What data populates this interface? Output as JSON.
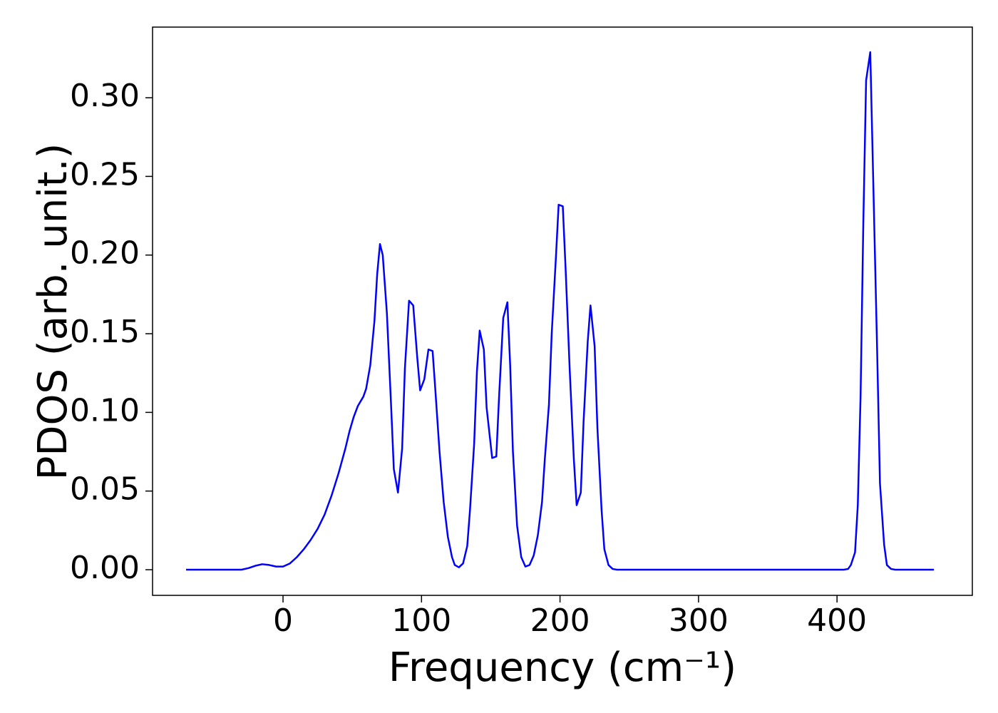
{
  "chart_data": {
    "type": "line",
    "xlabel": "Frequency (cm⁻¹)",
    "ylabel": "PDOS (arb. unit.)",
    "color": "#0000ff",
    "xlim": [
      -94.2,
      497.7
    ],
    "ylim": [
      -0.0163,
      0.3449
    ],
    "xticks": [
      0,
      100,
      200,
      300,
      400
    ],
    "yticks": [
      {
        "value": 0,
        "label": "0.00"
      },
      0.05,
      {
        "value": 0.1,
        "label": "0.10"
      },
      0.15,
      {
        "value": 0.2,
        "label": "0.20"
      },
      0.25,
      {
        "value": 0.3,
        "label": "0.30"
      }
    ],
    "x": [
      -70,
      -30,
      -25,
      -20,
      -15,
      -10,
      -5,
      0,
      5,
      10,
      15,
      20,
      25,
      30,
      35,
      40,
      45,
      48,
      51,
      54,
      58,
      60,
      63,
      66,
      68,
      70,
      72,
      75,
      78,
      80,
      83,
      86,
      88,
      91,
      94,
      97,
      99,
      102,
      105,
      108,
      110,
      113,
      116,
      119,
      122,
      124,
      127,
      130,
      133,
      135,
      138,
      140,
      142,
      145,
      147,
      151,
      154,
      156,
      159,
      162,
      164,
      166,
      169,
      172,
      175,
      178,
      181,
      184,
      187,
      189,
      192,
      194,
      197,
      199,
      202,
      204,
      207,
      210,
      212,
      215,
      217,
      220,
      222,
      225,
      227,
      230,
      232,
      235,
      238,
      241,
      405,
      408,
      410,
      413,
      415,
      417,
      419,
      421,
      424,
      426,
      429,
      431,
      434,
      436,
      439,
      442,
      470
    ],
    "values": [
      0,
      0,
      0.001,
      0.0025,
      0.0035,
      0.003,
      0.002,
      0.002,
      0.004,
      0.008,
      0.013,
      0.019,
      0.026,
      0.035,
      0.047,
      0.061,
      0.077,
      0.088,
      0.097,
      0.104,
      0.11,
      0.115,
      0.13,
      0.158,
      0.188,
      0.207,
      0.2,
      0.163,
      0.105,
      0.064,
      0.049,
      0.077,
      0.128,
      0.171,
      0.168,
      0.134,
      0.114,
      0.121,
      0.14,
      0.139,
      0.114,
      0.075,
      0.043,
      0.021,
      0.008,
      0.003,
      0.0015,
      0.004,
      0.015,
      0.038,
      0.08,
      0.126,
      0.152,
      0.14,
      0.103,
      0.071,
      0.072,
      0.11,
      0.16,
      0.17,
      0.13,
      0.075,
      0.028,
      0.008,
      0.002,
      0.003,
      0.009,
      0.022,
      0.043,
      0.07,
      0.105,
      0.15,
      0.198,
      0.232,
      0.231,
      0.192,
      0.127,
      0.07,
      0.041,
      0.049,
      0.094,
      0.145,
      0.168,
      0.142,
      0.09,
      0.038,
      0.013,
      0.003,
      0.0005,
      0,
      0,
      0.0005,
      0.003,
      0.011,
      0.041,
      0.11,
      0.221,
      0.311,
      0.329,
      0.253,
      0.138,
      0.055,
      0.016,
      0.003,
      0.0005,
      0,
      0
    ]
  }
}
